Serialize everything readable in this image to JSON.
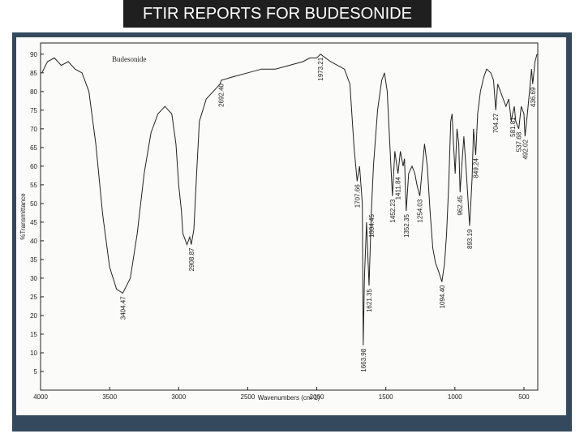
{
  "page_title": "FTIR REPORTS FOR BUDESONIDE",
  "chart_data": {
    "type": "line",
    "title": "Budesonide",
    "xlabel": "Wavenumbers (cm-1)",
    "ylabel": "%Transmittance",
    "xlim": [
      4000,
      400
    ],
    "ylim": [
      0,
      93
    ],
    "x_ticks": [
      "4000",
      "3500",
      "3000",
      "2500",
      "2000",
      "1500",
      "1000",
      "500"
    ],
    "y_ticks": [
      "5",
      "10",
      "15",
      "20",
      "25",
      "30",
      "35",
      "40",
      "45",
      "50",
      "55",
      "60",
      "65",
      "70",
      "75",
      "80",
      "85",
      "90"
    ],
    "grid": false,
    "series": [
      {
        "points": [
          [
            3990,
            85
          ],
          [
            3950,
            88
          ],
          [
            3900,
            89
          ],
          [
            3850,
            87
          ],
          [
            3800,
            88
          ],
          [
            3750,
            86
          ],
          [
            3700,
            85
          ],
          [
            3650,
            80
          ],
          [
            3600,
            66
          ],
          [
            3550,
            47
          ],
          [
            3500,
            33
          ],
          [
            3450,
            27
          ],
          [
            3404.47,
            26
          ],
          [
            3350,
            30
          ],
          [
            3300,
            42
          ],
          [
            3250,
            58
          ],
          [
            3200,
            69
          ],
          [
            3150,
            74
          ],
          [
            3100,
            76
          ],
          [
            3050,
            74
          ],
          [
            3020,
            66
          ],
          [
            3000,
            55
          ],
          [
            2980,
            48
          ],
          [
            2970,
            42
          ],
          [
            2940,
            39
          ],
          [
            2920,
            41
          ],
          [
            2908.87,
            39
          ],
          [
            2890,
            43
          ],
          [
            2870,
            58
          ],
          [
            2850,
            72
          ],
          [
            2800,
            78
          ],
          [
            2750,
            80
          ],
          [
            2700,
            82
          ],
          [
            2692.4,
            83
          ],
          [
            2600,
            84
          ],
          [
            2500,
            85
          ],
          [
            2400,
            86
          ],
          [
            2300,
            86
          ],
          [
            2200,
            87
          ],
          [
            2100,
            88
          ],
          [
            2050,
            89
          ],
          [
            2000,
            89
          ],
          [
            1973.21,
            90
          ],
          [
            1900,
            88
          ],
          [
            1800,
            86
          ],
          [
            1760,
            82
          ],
          [
            1730,
            65
          ],
          [
            1707.66,
            56
          ],
          [
            1690,
            60
          ],
          [
            1670,
            50
          ],
          [
            1663.98,
            12
          ],
          [
            1655,
            30
          ],
          [
            1640,
            45
          ],
          [
            1621.35,
            28
          ],
          [
            1610,
            42
          ],
          [
            1604.45,
            48
          ],
          [
            1590,
            60
          ],
          [
            1560,
            75
          ],
          [
            1530,
            83
          ],
          [
            1510,
            85
          ],
          [
            1490,
            80
          ],
          [
            1470,
            65
          ],
          [
            1452.23,
            52
          ],
          [
            1435,
            64
          ],
          [
            1420,
            60
          ],
          [
            1411.84,
            58
          ],
          [
            1395,
            64
          ],
          [
            1375,
            60
          ],
          [
            1365,
            62
          ],
          [
            1352.35,
            48
          ],
          [
            1335,
            58
          ],
          [
            1310,
            60
          ],
          [
            1290,
            58
          ],
          [
            1275,
            55
          ],
          [
            1254.03,
            52
          ],
          [
            1240,
            58
          ],
          [
            1220,
            66
          ],
          [
            1200,
            60
          ],
          [
            1180,
            48
          ],
          [
            1160,
            38
          ],
          [
            1140,
            34
          ],
          [
            1120,
            32
          ],
          [
            1094.4,
            29
          ],
          [
            1075,
            34
          ],
          [
            1060,
            42
          ],
          [
            1045,
            55
          ],
          [
            1030,
            72
          ],
          [
            1020,
            74
          ],
          [
            1010,
            66
          ],
          [
            998,
            58
          ],
          [
            985,
            70
          ],
          [
            972,
            66
          ],
          [
            962.45,
            53
          ],
          [
            950,
            60
          ],
          [
            935,
            68
          ],
          [
            915,
            57
          ],
          [
            893.19,
            44
          ],
          [
            875,
            57
          ],
          [
            865,
            70
          ],
          [
            849.24,
            63
          ],
          [
            835,
            74
          ],
          [
            815,
            80
          ],
          [
            790,
            84
          ],
          [
            770,
            86
          ],
          [
            740,
            85
          ],
          [
            720,
            83
          ],
          [
            704.27,
            75
          ],
          [
            690,
            82
          ],
          [
            670,
            80
          ],
          [
            650,
            78
          ],
          [
            630,
            76
          ],
          [
            610,
            78
          ],
          [
            591.6,
            72
          ],
          [
            581.81,
            74
          ],
          [
            570,
            76
          ],
          [
            560,
            72
          ],
          [
            537.68,
            70
          ],
          [
            520,
            76
          ],
          [
            500,
            74
          ],
          [
            492.02,
            68
          ],
          [
            475,
            74
          ],
          [
            460,
            80
          ],
          [
            445,
            86
          ],
          [
            436.69,
            82
          ],
          [
            420,
            88
          ],
          [
            405,
            90
          ]
        ]
      }
    ],
    "peak_labels": [
      {
        "x": 3404.47,
        "y": 26,
        "text": "3404.47"
      },
      {
        "x": 2908.87,
        "y": 39,
        "text": "2908.87"
      },
      {
        "x": 2692.4,
        "y": 83,
        "text": "2692.40"
      },
      {
        "x": 1973.21,
        "y": 90,
        "text": "1973.21"
      },
      {
        "x": 1707.66,
        "y": 56,
        "text": "1707.66"
      },
      {
        "x": 1663.98,
        "y": 12,
        "text": "1663.98"
      },
      {
        "x": 1621.35,
        "y": 28,
        "text": "1621.35"
      },
      {
        "x": 1604.45,
        "y": 48,
        "text": "1604.45"
      },
      {
        "x": 1452.23,
        "y": 52,
        "text": "1452.23"
      },
      {
        "x": 1411.84,
        "y": 58,
        "text": "1411.84"
      },
      {
        "x": 1352.35,
        "y": 48,
        "text": "1352.35"
      },
      {
        "x": 1254.03,
        "y": 52,
        "text": "1254.03"
      },
      {
        "x": 1094.4,
        "y": 29,
        "text": "1094.40"
      },
      {
        "x": 962.45,
        "y": 53,
        "text": "962.45"
      },
      {
        "x": 893.19,
        "y": 44,
        "text": "893.19"
      },
      {
        "x": 849.24,
        "y": 63,
        "text": "849.24"
      },
      {
        "x": 704.27,
        "y": 75,
        "text": "704.27"
      },
      {
        "x": 581.81,
        "y": 74,
        "text": "581.81"
      },
      {
        "x": 537.68,
        "y": 70,
        "text": "537.68"
      },
      {
        "x": 492.02,
        "y": 68,
        "text": "492.02"
      },
      {
        "x": 436.69,
        "y": 82,
        "text": "436.69"
      }
    ]
  }
}
